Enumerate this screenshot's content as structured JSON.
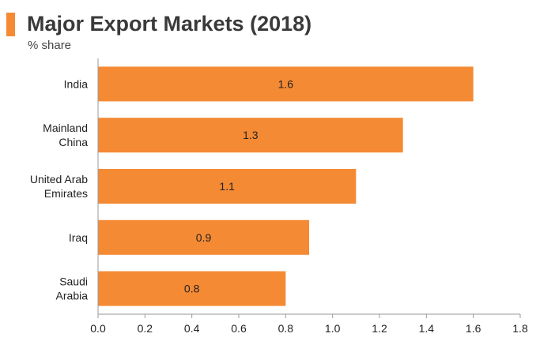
{
  "chart_data": {
    "type": "bar",
    "orientation": "horizontal",
    "title": "Major Export Markets (2018)",
    "subtitle": "% share",
    "categories": [
      "India",
      "Mainland China",
      "United Arab Emirates",
      "Iraq",
      "Saudi Arabia"
    ],
    "category_lines": [
      [
        "India"
      ],
      [
        "Mainland",
        "China"
      ],
      [
        "United Arab",
        "Emirates"
      ],
      [
        "Iraq"
      ],
      [
        "Saudi",
        "Arabia"
      ]
    ],
    "values": [
      1.6,
      1.3,
      1.1,
      0.9,
      0.8
    ],
    "value_labels": [
      "1.6",
      "1.3",
      "1.1",
      "0.9",
      "0.8"
    ],
    "xlim": [
      0,
      1.8
    ],
    "x_ticks": [
      0.0,
      0.2,
      0.4,
      0.6,
      0.8,
      1.0,
      1.2,
      1.4,
      1.6,
      1.8
    ],
    "x_tick_labels": [
      "0.0",
      "0.2",
      "0.4",
      "0.6",
      "0.8",
      "1.0",
      "1.2",
      "1.4",
      "1.6",
      "1.8"
    ],
    "xlabel": "",
    "ylabel": "",
    "grid": false,
    "legend": "none",
    "colors": {
      "bar": "#f58a34",
      "accent": "#f58a34",
      "title": "#3a3a3a",
      "text": "#222222",
      "axis": "#9a9a9a"
    }
  }
}
